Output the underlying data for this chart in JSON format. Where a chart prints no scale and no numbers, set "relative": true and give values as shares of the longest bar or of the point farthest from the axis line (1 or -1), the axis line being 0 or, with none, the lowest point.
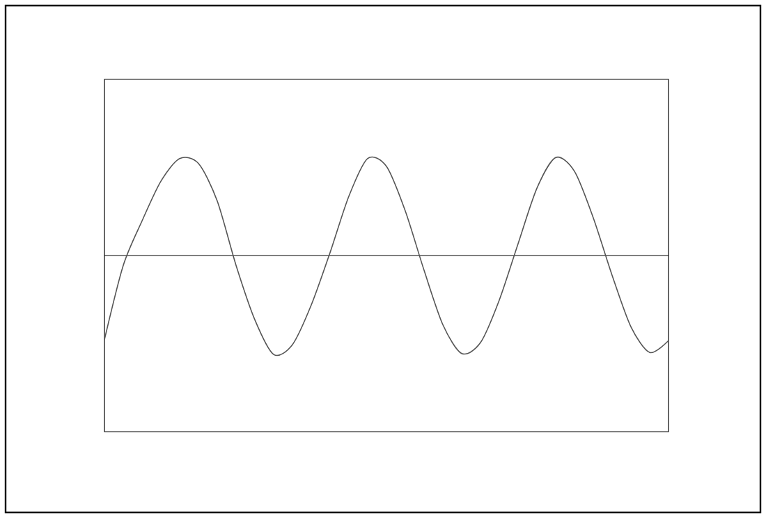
{
  "chart_data": {
    "type": "line",
    "relative": true,
    "color": "#555555",
    "categories": [
      null,
      null,
      null,
      null,
      null,
      null,
      null,
      null,
      null,
      null,
      null,
      null,
      null,
      null,
      null,
      null,
      null,
      null,
      null,
      null,
      null,
      null,
      null,
      null,
      null,
      null,
      null,
      null,
      null,
      null,
      null
    ],
    "values": [
      -0.85,
      -0.1,
      0.35,
      0.75,
      0.98,
      0.93,
      0.55,
      -0.1,
      -0.65,
      -1.0,
      -0.9,
      -0.5,
      0.03,
      0.6,
      0.98,
      0.9,
      0.45,
      -0.15,
      -0.7,
      -0.99,
      -0.88,
      -0.45,
      0.12,
      0.68,
      0.99,
      0.85,
      0.38,
      -0.2,
      -0.72,
      -0.98,
      -0.86
    ]
  }
}
